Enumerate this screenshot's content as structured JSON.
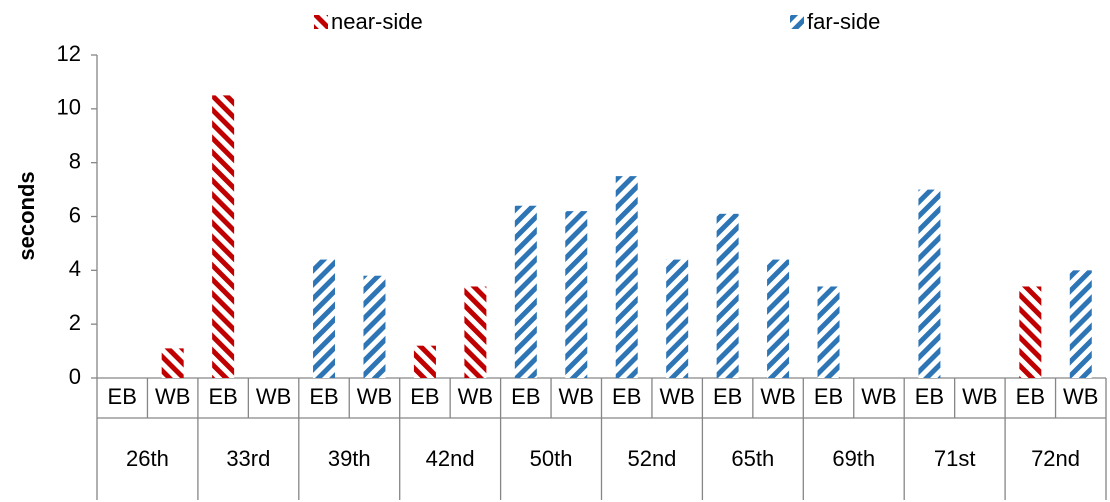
{
  "chart_data": {
    "type": "bar",
    "y_label": "seconds",
    "categories": [
      "EB",
      "WB",
      "EB",
      "WB",
      "EB",
      "WB",
      "EB",
      "WB",
      "EB",
      "WB",
      "EB",
      "WB",
      "EB",
      "WB",
      "EB",
      "WB",
      "EB",
      "WB",
      "EB",
      "WB"
    ],
    "groups": [
      "26th",
      "33rd",
      "39th",
      "42nd",
      "50th",
      "52nd",
      "65th",
      "69th",
      "71st",
      "72nd"
    ],
    "series": [
      {
        "name": "near-side",
        "color": "#c00000",
        "hatch": "backslash",
        "values": [
          null,
          1.1,
          10.5,
          null,
          null,
          null,
          1.2,
          3.4,
          null,
          null,
          null,
          null,
          null,
          null,
          null,
          null,
          null,
          null,
          3.4,
          null
        ]
      },
      {
        "name": "far-side",
        "color": "#2e75b6",
        "hatch": "slash",
        "values": [
          null,
          null,
          null,
          null,
          4.4,
          3.8,
          null,
          null,
          6.4,
          6.2,
          7.5,
          4.4,
          6.1,
          4.4,
          3.4,
          null,
          7.0,
          null,
          null,
          4.0
        ]
      }
    ],
    "ylim": [
      0,
      12
    ],
    "yticks": [
      0,
      2,
      4,
      6,
      8,
      10,
      12
    ],
    "grid": false,
    "legend": "top"
  }
}
